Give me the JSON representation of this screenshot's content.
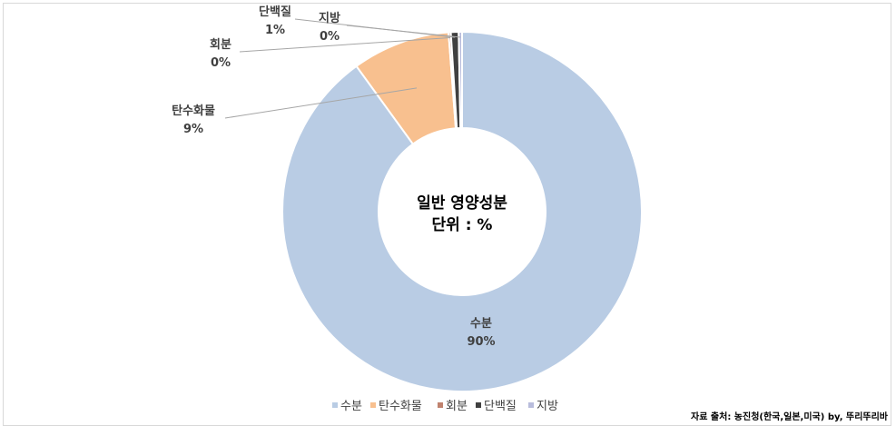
{
  "chart_data": {
    "type": "pie",
    "variant": "doughnut",
    "center_title": "일반 영양성분",
    "center_unit": "단위 : %",
    "slices": [
      {
        "name": "수분",
        "value": 90,
        "label": "90%",
        "color": "#b9cce4"
      },
      {
        "name": "탄수화물",
        "value": 8.8,
        "label": "9%",
        "color": "#f8c08f"
      },
      {
        "name": "회분",
        "value": 0.2,
        "label": "0%",
        "color": "#c0826e"
      },
      {
        "name": "단백질",
        "value": 0.7,
        "label": "1%",
        "color": "#404040"
      },
      {
        "name": "지방",
        "value": 0.3,
        "label": "0%",
        "color": "#b8bcdc"
      }
    ],
    "legend_position": "bottom",
    "source_note": "자료 출처: 농진청(한국,일본,미국) by, 뚜리뚜리바"
  }
}
